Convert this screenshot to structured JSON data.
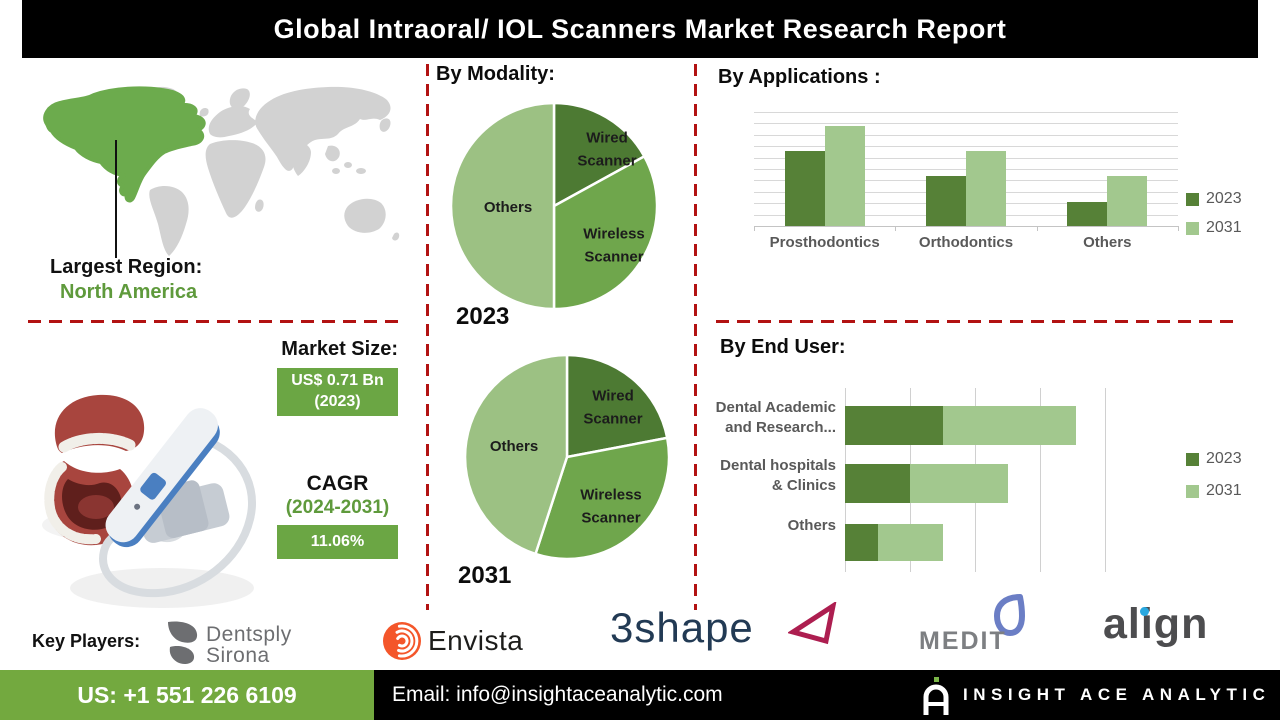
{
  "title": "Global Intraoral/ IOL Scanners Market Research Report",
  "region": {
    "label": "Largest Region:",
    "value": "North America"
  },
  "market": {
    "heading": "Market Size:",
    "size_value": "US$ 0.71 Bn",
    "size_year": "(2023)",
    "cagr_label": "CAGR",
    "cagr_period": "(2024-2031)",
    "cagr_value": "11.06%"
  },
  "chart_data": [
    {
      "type": "pie",
      "title": "By Modality:",
      "year_label": "2023",
      "labels": [
        "Wired\nScanner",
        "Wireless\nScanner",
        "Others"
      ],
      "values": [
        17,
        33,
        50
      ],
      "colors": [
        "#4d7a33",
        "#6fa64c",
        "#9cc183"
      ]
    },
    {
      "type": "pie",
      "year_label": "2031",
      "labels": [
        "Wired\nScanner",
        "Wireless\nScanner",
        "Others"
      ],
      "values": [
        22,
        33,
        45
      ],
      "colors": [
        "#4d7a33",
        "#6fa64c",
        "#9cc183"
      ]
    },
    {
      "type": "bar",
      "title": "By Applications :",
      "categories": [
        "Prosthodontics",
        "Orthodontics",
        "Others"
      ],
      "series": [
        {
          "name": "2023",
          "values": [
            6.6,
            4.4,
            2.1
          ]
        },
        {
          "name": "2031",
          "values": [
            8.8,
            6.6,
            4.4
          ]
        }
      ],
      "colors": [
        "#568137",
        "#a2c88e"
      ],
      "ylim": [
        0,
        10
      ],
      "grid": true,
      "legend_position": "right"
    },
    {
      "type": "stacked-hbar",
      "title": "By End User:",
      "categories": [
        "Dental Academic\nand Research...",
        "Dental hospitals\n& Clinics",
        "Others"
      ],
      "series": [
        {
          "name": "2023",
          "values": [
            1.5,
            1.0,
            0.5
          ]
        },
        {
          "name": "2031",
          "values": [
            2.05,
            1.5,
            1.0
          ]
        }
      ],
      "colors": [
        "#568137",
        "#a2c88e"
      ],
      "xlim": [
        0,
        4
      ],
      "grid": true,
      "legend_position": "right"
    }
  ],
  "key_players": {
    "heading": "Key Players:",
    "players": [
      {
        "name": "Dentsply Sirona",
        "line1": "Dentsply",
        "line2": "Sirona"
      },
      {
        "name": "Envista"
      },
      {
        "name": "3shape"
      },
      {
        "name": "MEDIT"
      },
      {
        "name": "align"
      }
    ]
  },
  "footer": {
    "phone": "US: +1 551 226 6109",
    "email": "Email: info@insightaceanalytic.com",
    "company": "INSIGHT ACE ANALYTIC"
  },
  "colors": {
    "green_accent": "#6ba644",
    "footer_green": "#73a93f",
    "map_green": "#6cab4d",
    "map_gray": "#d2d2d2",
    "text_green": "#5f9a3c",
    "dashed_red": "#b21212",
    "series_2023": "#568137",
    "series_2031": "#a2c88e",
    "dentsply_gray": "#6d6e71",
    "envista_orange": "#f4562a",
    "shape3_navy": "#223a54",
    "shape3_magenta": "#ad1e50",
    "medit_blue": "#6b7ec5",
    "medit_gray": "#7d7f82",
    "align_gray": "#4d4d4f",
    "align_blue": "#29a8e0",
    "insight_green": "#7ab648"
  }
}
